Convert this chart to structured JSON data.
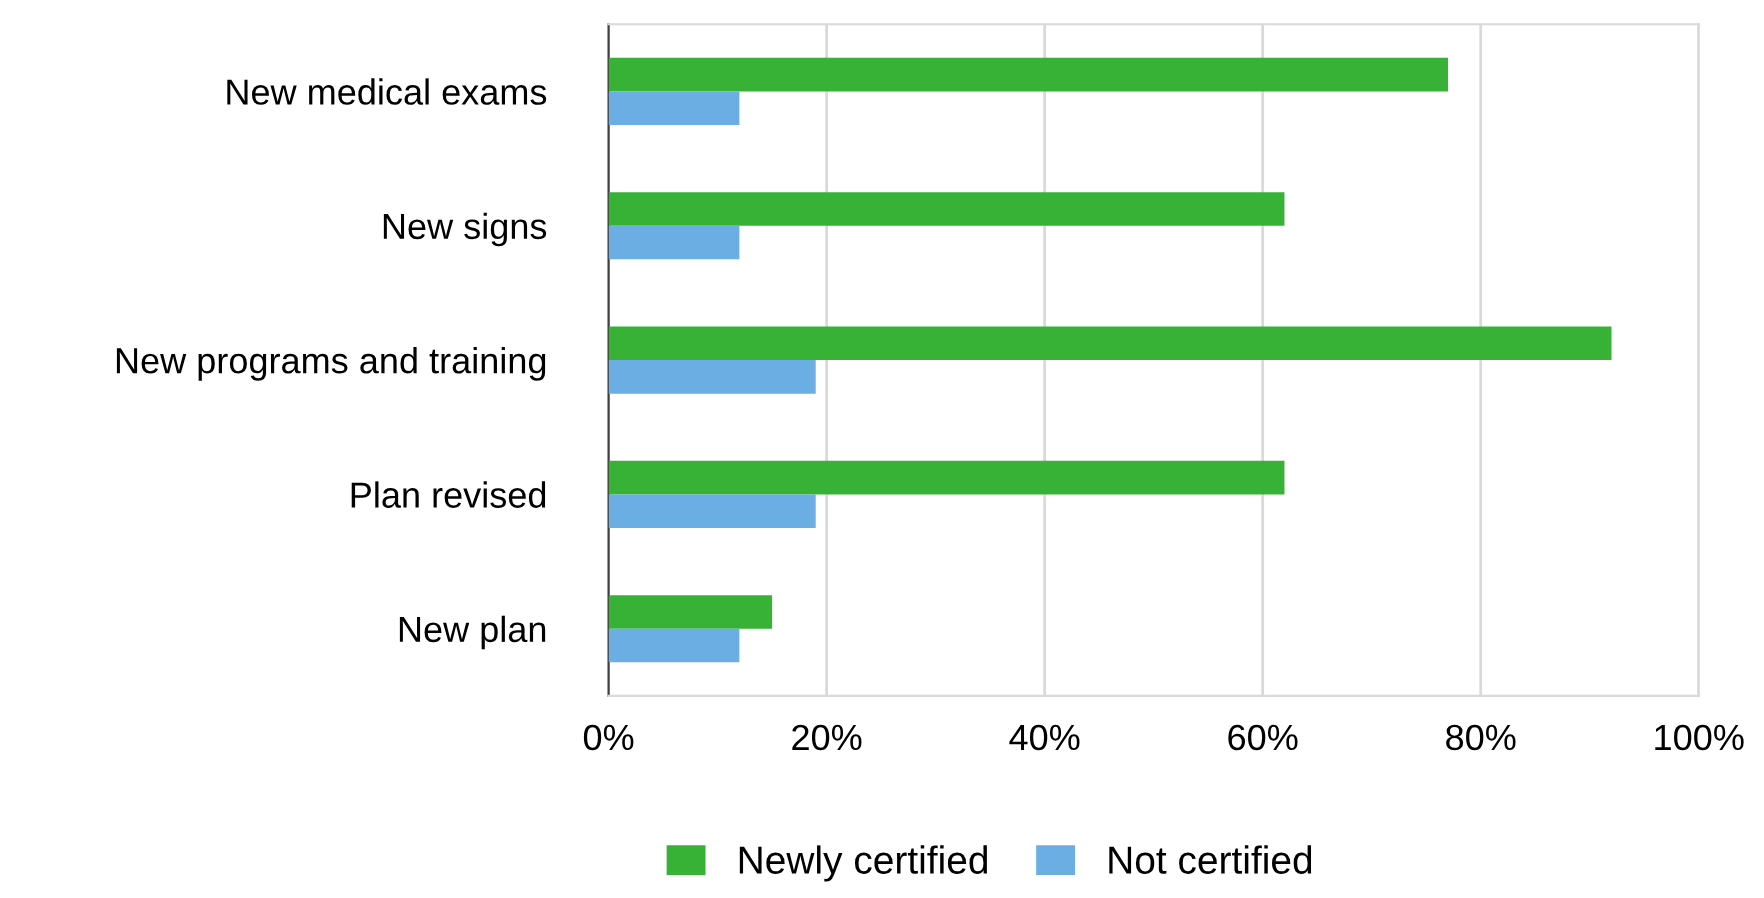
{
  "chart_data": {
    "type": "bar",
    "orientation": "horizontal",
    "categories": [
      "New medical exams",
      "New signs",
      "New programs and training",
      "Plan revised",
      "New plan"
    ],
    "series": [
      {
        "name": "Newly certified",
        "color": "#38b236",
        "values": [
          77,
          62,
          92,
          62,
          15
        ]
      },
      {
        "name": "Not certified",
        "color": "#6aaee3",
        "values": [
          12,
          12,
          19,
          19,
          12
        ]
      }
    ],
    "xlim": [
      0,
      100
    ],
    "xticks": [
      {
        "value": 0,
        "label": "0%"
      },
      {
        "value": 20,
        "label": "20%"
      },
      {
        "value": 40,
        "label": "40%"
      },
      {
        "value": 60,
        "label": "60%"
      },
      {
        "value": 80,
        "label": "80%"
      },
      {
        "value": 100,
        "label": "100%"
      }
    ],
    "grid": "x",
    "legend": "bottom"
  }
}
